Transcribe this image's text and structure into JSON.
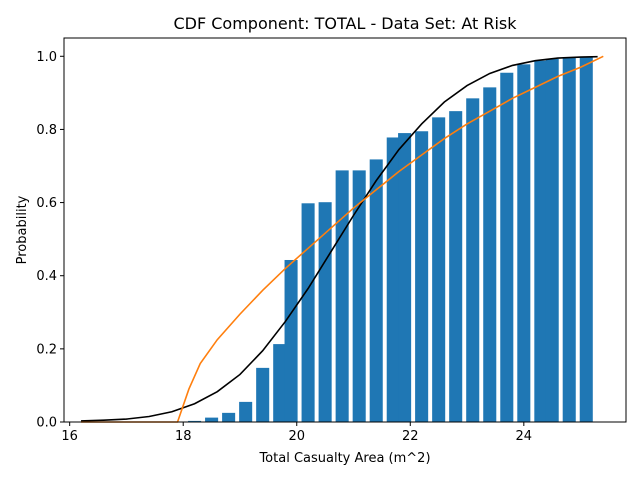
{
  "chart_data": {
    "type": "bar",
    "title": "CDF Component: TOTAL - Data Set: At Risk",
    "xlabel": "Total Casualty Area (m^2)",
    "ylabel": "Probability",
    "xlim": [
      15.9,
      25.8
    ],
    "ylim": [
      0,
      1.05
    ],
    "x_ticks": [
      16,
      18,
      20,
      22,
      24
    ],
    "x_tick_labels": [
      "16",
      "18",
      "20",
      "22",
      "24"
    ],
    "y_ticks": [
      0.0,
      0.2,
      0.4,
      0.6,
      0.8,
      1.0
    ],
    "y_tick_labels": [
      "0.0",
      "0.2",
      "0.4",
      "0.6",
      "0.8",
      "1.0"
    ],
    "grid": false,
    "bars": {
      "color": "#1f77b4",
      "width": 0.23,
      "x": [
        18.2,
        18.5,
        18.8,
        19.1,
        19.4,
        19.7,
        19.9,
        20.2,
        20.5,
        20.8,
        21.1,
        21.4,
        21.7,
        21.9,
        22.2,
        22.5,
        22.8,
        23.1,
        23.4,
        23.7,
        24.0,
        24.3,
        24.5,
        24.8,
        25.1
      ],
      "values": [
        0.003,
        0.012,
        0.025,
        0.055,
        0.148,
        0.213,
        0.443,
        0.598,
        0.601,
        0.688,
        0.688,
        0.718,
        0.778,
        0.79,
        0.795,
        0.833,
        0.85,
        0.885,
        0.915,
        0.955,
        0.978,
        0.988,
        0.993,
        0.997,
        0.999
      ]
    },
    "series": [
      {
        "color": "#000000",
        "x": [
          16.2,
          16.6,
          17.0,
          17.4,
          17.8,
          18.2,
          18.6,
          19.0,
          19.4,
          19.8,
          20.2,
          20.6,
          21.0,
          21.4,
          21.8,
          22.2,
          22.6,
          23.0,
          23.4,
          23.8,
          24.2,
          24.6,
          25.0,
          25.3
        ],
        "y": [
          0.003,
          0.005,
          0.008,
          0.015,
          0.028,
          0.05,
          0.083,
          0.13,
          0.195,
          0.275,
          0.365,
          0.465,
          0.565,
          0.66,
          0.745,
          0.815,
          0.875,
          0.92,
          0.953,
          0.975,
          0.988,
          0.995,
          0.998,
          0.999
        ]
      },
      {
        "color": "#ff7f0e",
        "x": [
          16.2,
          17.0,
          17.9,
          18.1,
          18.3,
          18.6,
          19.0,
          19.4,
          19.8,
          20.2,
          20.6,
          21.0,
          21.4,
          21.8,
          22.2,
          22.6,
          23.0,
          23.4,
          23.8,
          24.2,
          24.6,
          25.0,
          25.4
        ],
        "y": [
          0.0,
          0.0,
          0.0,
          0.09,
          0.16,
          0.225,
          0.295,
          0.36,
          0.42,
          0.475,
          0.53,
          0.585,
          0.635,
          0.685,
          0.73,
          0.775,
          0.815,
          0.85,
          0.885,
          0.915,
          0.945,
          0.97,
          1.0
        ]
      }
    ]
  }
}
